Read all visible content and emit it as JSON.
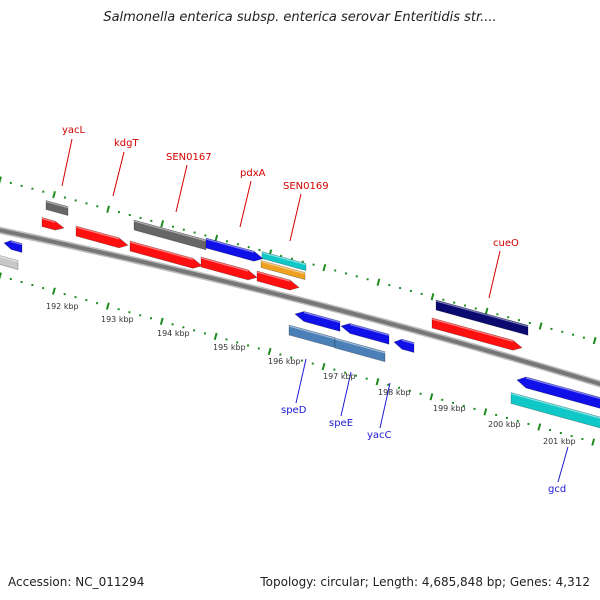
{
  "title": "Salmonella enterica subsp. enterica serovar Enteritidis str....",
  "footer": {
    "accession": "Accession: NC_011294",
    "topology": "Topology: circular; Length: 4,685,848 bp; Genes: 4,312"
  },
  "colors": {
    "backbone": "#7c7c7c",
    "tick": "#1e8c1e",
    "forward_label": "#d40000",
    "reverse_label": "#1a1ad4",
    "red_gene": "#ff1010",
    "blue_gene": "#1010e8",
    "gray_gene": "#666666",
    "navy_gene": "#0a0a70",
    "cyan_gene": "#10c8c8",
    "orange_gene": "#f0a020",
    "steel_gene": "#4a7fb8",
    "light_gray_gene": "#c8c8c8"
  },
  "forward_labels": [
    "yacL",
    "kdgT",
    "SEN0167",
    "pdxA",
    "SEN0169",
    "cueO"
  ],
  "reverse_labels": [
    "speD",
    "speE",
    "yacC",
    "gcd"
  ],
  "scale_labels": [
    "192 kbp",
    "193 kbp",
    "194 kbp",
    "195 kbp",
    "196 kbp",
    "197 kbp",
    "198 kbp",
    "199 kbp",
    "200 kbp",
    "201 kbp"
  ]
}
